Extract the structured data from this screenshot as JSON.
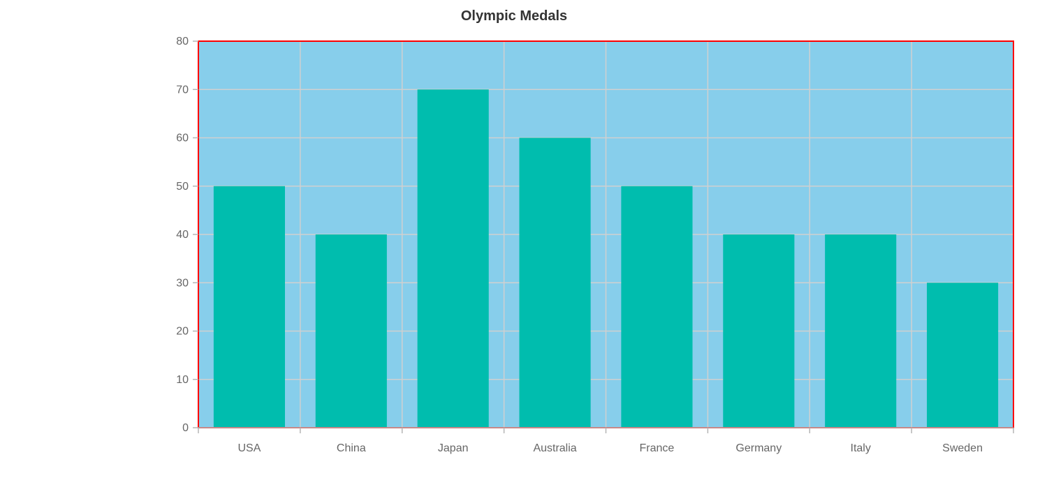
{
  "chart_data": {
    "type": "bar",
    "title": "Olympic Medals",
    "xlabel": "",
    "ylabel": "",
    "categories": [
      "USA",
      "China",
      "Japan",
      "Australia",
      "France",
      "Germany",
      "Italy",
      "Sweden"
    ],
    "values": [
      50,
      40,
      70,
      60,
      50,
      40,
      40,
      30
    ],
    "ylim": [
      0,
      80
    ],
    "yticks": [
      "0",
      "10",
      "20",
      "30",
      "40",
      "50",
      "60",
      "70",
      "80"
    ],
    "grid": true,
    "legend": "none",
    "colors": {
      "bar": "#00bdae",
      "plot_background": "#87ceeb",
      "plot_border": "#ff0000",
      "grid": "#d0d0d0",
      "axis": "#b5b5b5"
    }
  }
}
